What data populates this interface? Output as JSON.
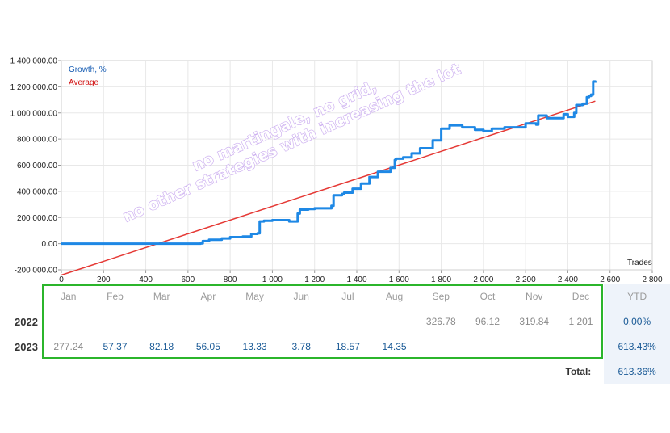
{
  "chart_data": {
    "type": "line",
    "xlabel": "Trades",
    "x_ticks": [
      "0",
      "200",
      "400",
      "600",
      "800",
      "1 000",
      "1 200",
      "1 400",
      "1 600",
      "1 800",
      "2 000",
      "2 200",
      "2 400",
      "2 600",
      "2 800"
    ],
    "y_ticks": [
      "1 400 000.00",
      "1 200 000.00",
      "1 000 000.00",
      "800 000.00",
      "600 000.00",
      "400 000.00",
      "200 000.00",
      "0.00",
      "-200 000.00"
    ],
    "xlim": [
      0,
      2800
    ],
    "ylim": [
      -200000,
      1400000
    ],
    "grid": true,
    "legend_placement": "top-left",
    "series": [
      {
        "name": "Growth, %",
        "color": "#1e88e5",
        "x": [
          0,
          200,
          400,
          500,
          660,
          670,
          700,
          760,
          800,
          860,
          900,
          930,
          940,
          960,
          1000,
          1050,
          1080,
          1120,
          1130,
          1170,
          1200,
          1280,
          1290,
          1330,
          1340,
          1380,
          1420,
          1460,
          1500,
          1560,
          1580,
          1585,
          1620,
          1660,
          1700,
          1760,
          1800,
          1840,
          1900,
          1960,
          2000,
          2040,
          2100,
          2200,
          2250,
          2260,
          2300,
          2380,
          2400,
          2430,
          2440,
          2470,
          2490,
          2500,
          2510,
          2520,
          2530
        ],
        "y": [
          0,
          0,
          0,
          0,
          2000,
          20000,
          30000,
          40000,
          50000,
          55000,
          75000,
          80000,
          170000,
          175000,
          180000,
          180000,
          170000,
          230000,
          260000,
          265000,
          270000,
          290000,
          370000,
          380000,
          390000,
          420000,
          460000,
          510000,
          550000,
          580000,
          640000,
          650000,
          660000,
          690000,
          730000,
          790000,
          880000,
          905000,
          890000,
          870000,
          860000,
          880000,
          890000,
          920000,
          910000,
          980000,
          960000,
          990000,
          970000,
          1000000,
          1060000,
          1070000,
          1120000,
          1130000,
          1140000,
          1240000,
          1230000
        ]
      },
      {
        "name": "Average",
        "color": "#e53935",
        "x": [
          0,
          2530
        ],
        "y": [
          -240000,
          1090000
        ]
      }
    ]
  },
  "watermark": {
    "line1": "no martingale, no grid,",
    "line2": "no other strategies with increasing the lot"
  },
  "table": {
    "months": [
      "Jan",
      "Feb",
      "Mar",
      "Apr",
      "May",
      "Jun",
      "Jul",
      "Aug",
      "Sep",
      "Oct",
      "Nov",
      "Dec"
    ],
    "ytd_label": "YTD",
    "rows": [
      {
        "year": "2022",
        "values": [
          "",
          "",
          "",
          "",
          "",
          "",
          "",
          "",
          "326.78",
          "96.12",
          "319.84",
          "1 201"
        ],
        "ytd": "0.00%"
      },
      {
        "year": "2023",
        "values": [
          "277.24",
          "57.37",
          "82.18",
          "56.05",
          "13.33",
          "3.78",
          "18.57",
          "14.35",
          "",
          "",
          "",
          ""
        ],
        "ytd": "613.43%"
      }
    ],
    "total_label": "Total:",
    "total_value": "613.36%"
  }
}
